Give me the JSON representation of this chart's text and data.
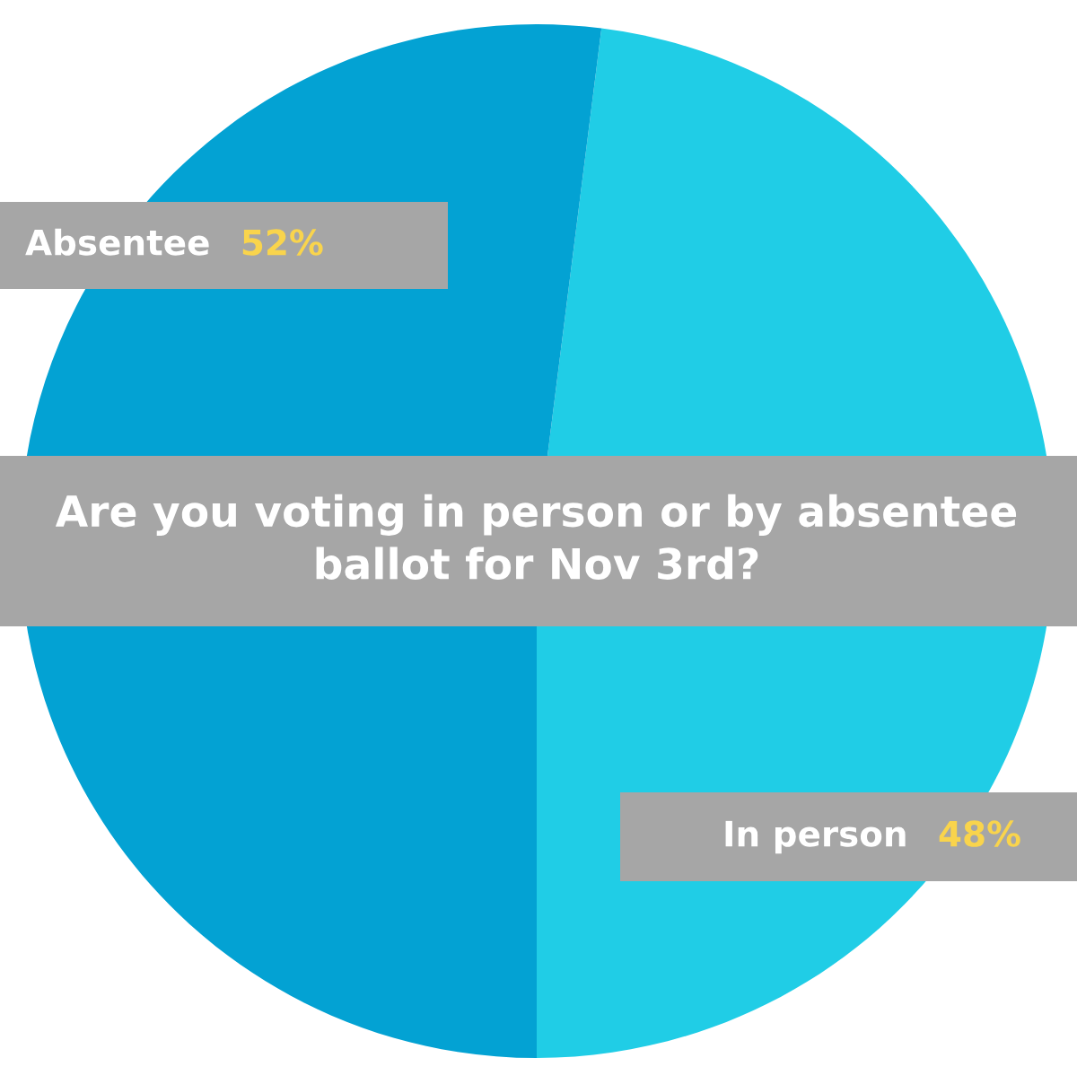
{
  "chart_data": {
    "type": "pie",
    "title": "Are you voting in person or by absentee ballot for Nov 3rd?",
    "categories": [
      "In person",
      "Absentee"
    ],
    "values": [
      48,
      52
    ],
    "colors": [
      "#20cde6",
      "#03a2d3"
    ],
    "value_labels": [
      "48%",
      "52%"
    ]
  }
}
